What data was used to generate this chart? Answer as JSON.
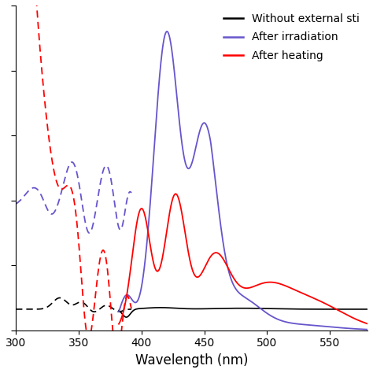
{
  "title": "",
  "xlabel": "Wavelength (nm)",
  "ylabel": "",
  "xlim": [
    300,
    580
  ],
  "ylim": [
    0,
    1.0
  ],
  "xticks": [
    300,
    350,
    400,
    450,
    500,
    550
  ],
  "legend_labels": [
    "Without external sti",
    "After irradiation",
    "After heating"
  ],
  "legend_colors": [
    "black",
    "#6655cc",
    "red"
  ],
  "background_color": "#ffffff",
  "figsize": [
    4.74,
    4.74
  ],
  "dpi": 100
}
